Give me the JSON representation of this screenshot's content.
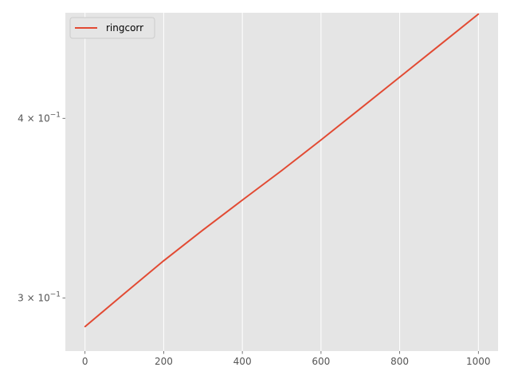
{
  "chart_data": {
    "type": "line",
    "title": "",
    "xlabel": "",
    "ylabel": "",
    "y_scale": "log",
    "grid": true,
    "legend_position": "top-left",
    "xlim": [
      -50,
      1050
    ],
    "ylim": [
      0.2755,
      0.4737
    ],
    "x_ticks": [
      {
        "value": 0,
        "label": "0"
      },
      {
        "value": 200,
        "label": "200"
      },
      {
        "value": 400,
        "label": "400"
      },
      {
        "value": 600,
        "label": "600"
      },
      {
        "value": 800,
        "label": "800"
      },
      {
        "value": 1000,
        "label": "1000"
      }
    ],
    "y_ticks": [
      {
        "value": 0.3,
        "mantissa": "3",
        "base": "10",
        "exp": "−1"
      },
      {
        "value": 0.4,
        "mantissa": "4",
        "base": "10",
        "exp": "−1"
      }
    ],
    "series": [
      {
        "name": "ringcorr",
        "color": "#E24A33",
        "x": [
          0,
          100,
          200,
          300,
          400,
          500,
          600,
          700,
          800,
          900,
          1000
        ],
        "y": [
          0.2865,
          0.3021,
          0.3184,
          0.3345,
          0.3509,
          0.3679,
          0.3864,
          0.4063,
          0.4273,
          0.4494,
          0.4727
        ]
      }
    ]
  }
}
